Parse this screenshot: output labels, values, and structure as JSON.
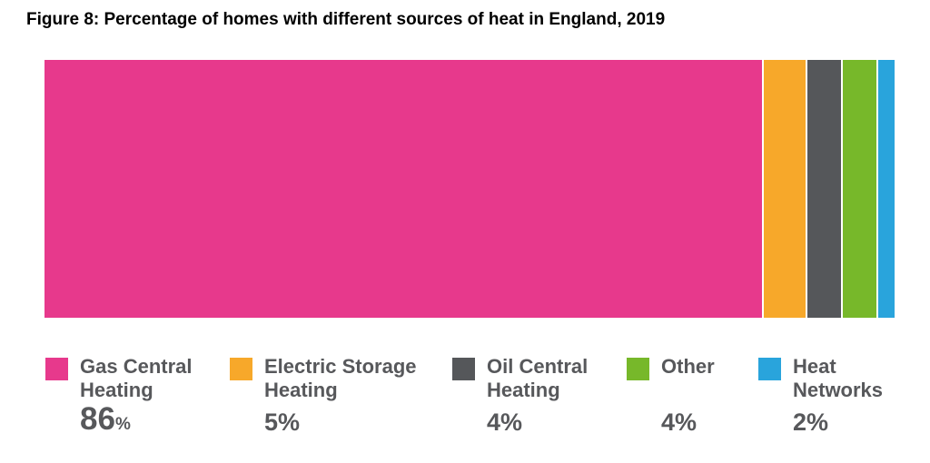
{
  "figure": {
    "title": "Figure 8: Percentage of homes with different sources of heat in England, 2019"
  },
  "chart_data": {
    "type": "bar",
    "variant": "stacked-horizontal-single-bar",
    "title": "Figure 8: Percentage of homes with different sources of heat in England, 2019",
    "categories": [
      "Gas Central Heating",
      "Electric Storage Heating",
      "Oil Central Heating",
      "Other",
      "Heat Networks"
    ],
    "values": [
      86,
      5,
      4,
      4,
      2
    ],
    "unit": "%",
    "value_labels": [
      "86%",
      "5%",
      "4%",
      "4%",
      "2%"
    ],
    "colors": [
      "#E7398C",
      "#F7A82A",
      "#55575A",
      "#77B82A",
      "#29A4DC"
    ],
    "xlim": [
      0,
      100
    ],
    "grid": false,
    "axes_shown": false,
    "legend_position": "bottom"
  },
  "legend": {
    "items": [
      {
        "label": "Gas Central Heating",
        "value": "86",
        "unit": "%",
        "color": "#E7398C"
      },
      {
        "label": "Electric Storage Heating",
        "value": "5",
        "unit": "%",
        "color": "#F7A82A"
      },
      {
        "label": "Oil Central Heating",
        "value": "4",
        "unit": "%",
        "color": "#55575A"
      },
      {
        "label": "Other",
        "value": "4",
        "unit": "%",
        "color": "#77B82A"
      },
      {
        "label": "Heat Networks",
        "value": "2",
        "unit": "%",
        "color": "#29A4DC"
      }
    ]
  },
  "style": {
    "background": "#FFFFFF",
    "title_color": "#000000",
    "text_color": "#57585B"
  }
}
